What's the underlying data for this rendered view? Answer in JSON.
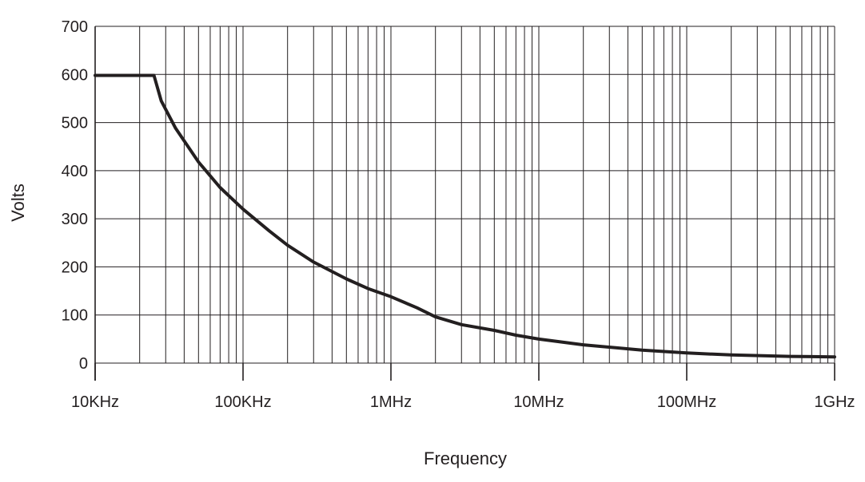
{
  "chart_data": {
    "type": "line",
    "title": "",
    "xlabel": "Frequency",
    "ylabel": "Volts",
    "x_scale": "log",
    "xlim": [
      10000,
      1000000000
    ],
    "ylim": [
      0,
      700
    ],
    "grid": true,
    "legend": "none",
    "x_ticks": [
      {
        "value": 10000,
        "label": "10KHz"
      },
      {
        "value": 100000,
        "label": "100KHz"
      },
      {
        "value": 1000000,
        "label": "1MHz"
      },
      {
        "value": 10000000,
        "label": "10MHz"
      },
      {
        "value": 100000000,
        "label": "100MHz"
      },
      {
        "value": 1000000000,
        "label": "1GHz"
      }
    ],
    "y_ticks": [
      {
        "value": 0,
        "label": "0"
      },
      {
        "value": 100,
        "label": "100"
      },
      {
        "value": 200,
        "label": "200"
      },
      {
        "value": 300,
        "label": "300"
      },
      {
        "value": 400,
        "label": "400"
      },
      {
        "value": 500,
        "label": "500"
      },
      {
        "value": 600,
        "label": "600"
      },
      {
        "value": 700,
        "label": "700"
      }
    ],
    "series": [
      {
        "x": [
          10000,
          25000,
          28000,
          35000,
          50000,
          70000,
          100000,
          150000,
          200000,
          300000,
          500000,
          700000,
          1000000,
          1500000,
          2000000,
          3000000,
          5000000,
          7000000,
          10000000,
          20000000,
          50000000,
          100000000,
          200000000,
          500000000,
          1000000000
        ],
        "values": [
          598,
          598,
          545,
          488,
          418,
          365,
          320,
          275,
          245,
          210,
          175,
          155,
          138,
          115,
          96,
          80,
          68,
          58,
          50,
          38,
          27,
          21,
          17,
          14,
          13
        ]
      }
    ]
  },
  "colors": {
    "line": "#231f20",
    "grid": "#231f20",
    "text": "#231f20",
    "background": "#ffffff"
  }
}
